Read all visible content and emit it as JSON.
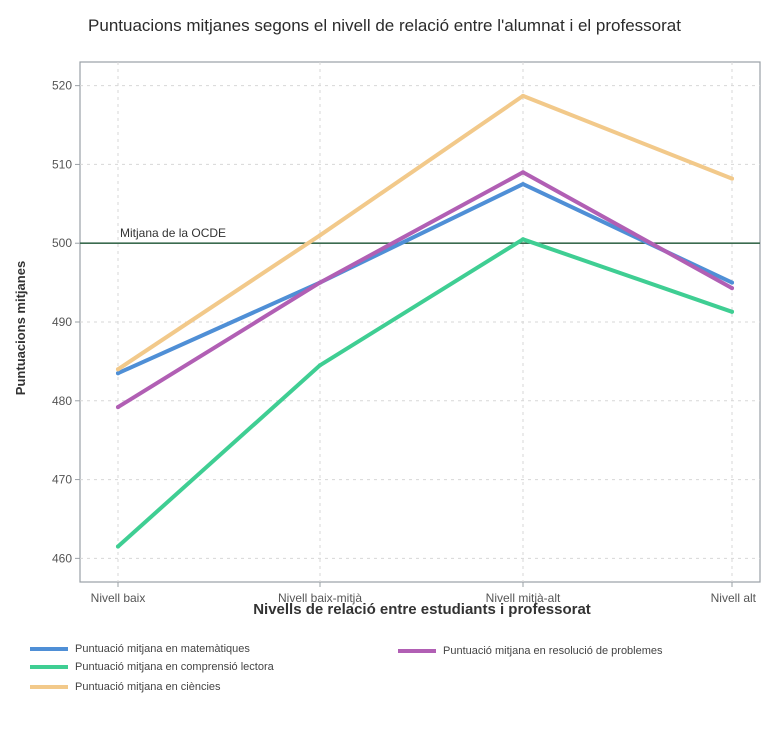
{
  "chart_data": {
    "type": "line",
    "title": "Puntuacions mitjanes segons el nivell de relació entre l'alumnat i el professorat",
    "xlabel": "Nivells de relació entre estudiants i professorat",
    "ylabel": "Puntuacions mitjanes",
    "categories": [
      "Nivell baix",
      "Nivell baix-mitjà",
      "Nivell mitjà-alt",
      "Nivell alt"
    ],
    "ylim": [
      457,
      523
    ],
    "yticks": [
      460,
      470,
      480,
      490,
      500,
      510,
      520
    ],
    "grid": true,
    "legend_position": "bottom",
    "reference_line": {
      "label": "Mitjana de la OCDE",
      "value": 500,
      "color": "#3b6b4f"
    },
    "series": [
      {
        "name": "Puntuació mitjana en matemàtiques",
        "color": "#4f8fd6",
        "values": [
          483.5,
          495,
          507.5,
          495
        ]
      },
      {
        "name": "Puntuació mitjana en comprensió lectora",
        "color": "#3fce93",
        "values": [
          461.5,
          484.5,
          500.5,
          491.3
        ]
      },
      {
        "name": "Puntuació mitjana en ciències",
        "color": "#f2c98a",
        "values": [
          484,
          501,
          518.7,
          508.2
        ]
      },
      {
        "name": "Puntuació mitjana en resolució de problemes",
        "color": "#b15fb4",
        "values": [
          479.2,
          495,
          509,
          494.3
        ]
      }
    ]
  }
}
